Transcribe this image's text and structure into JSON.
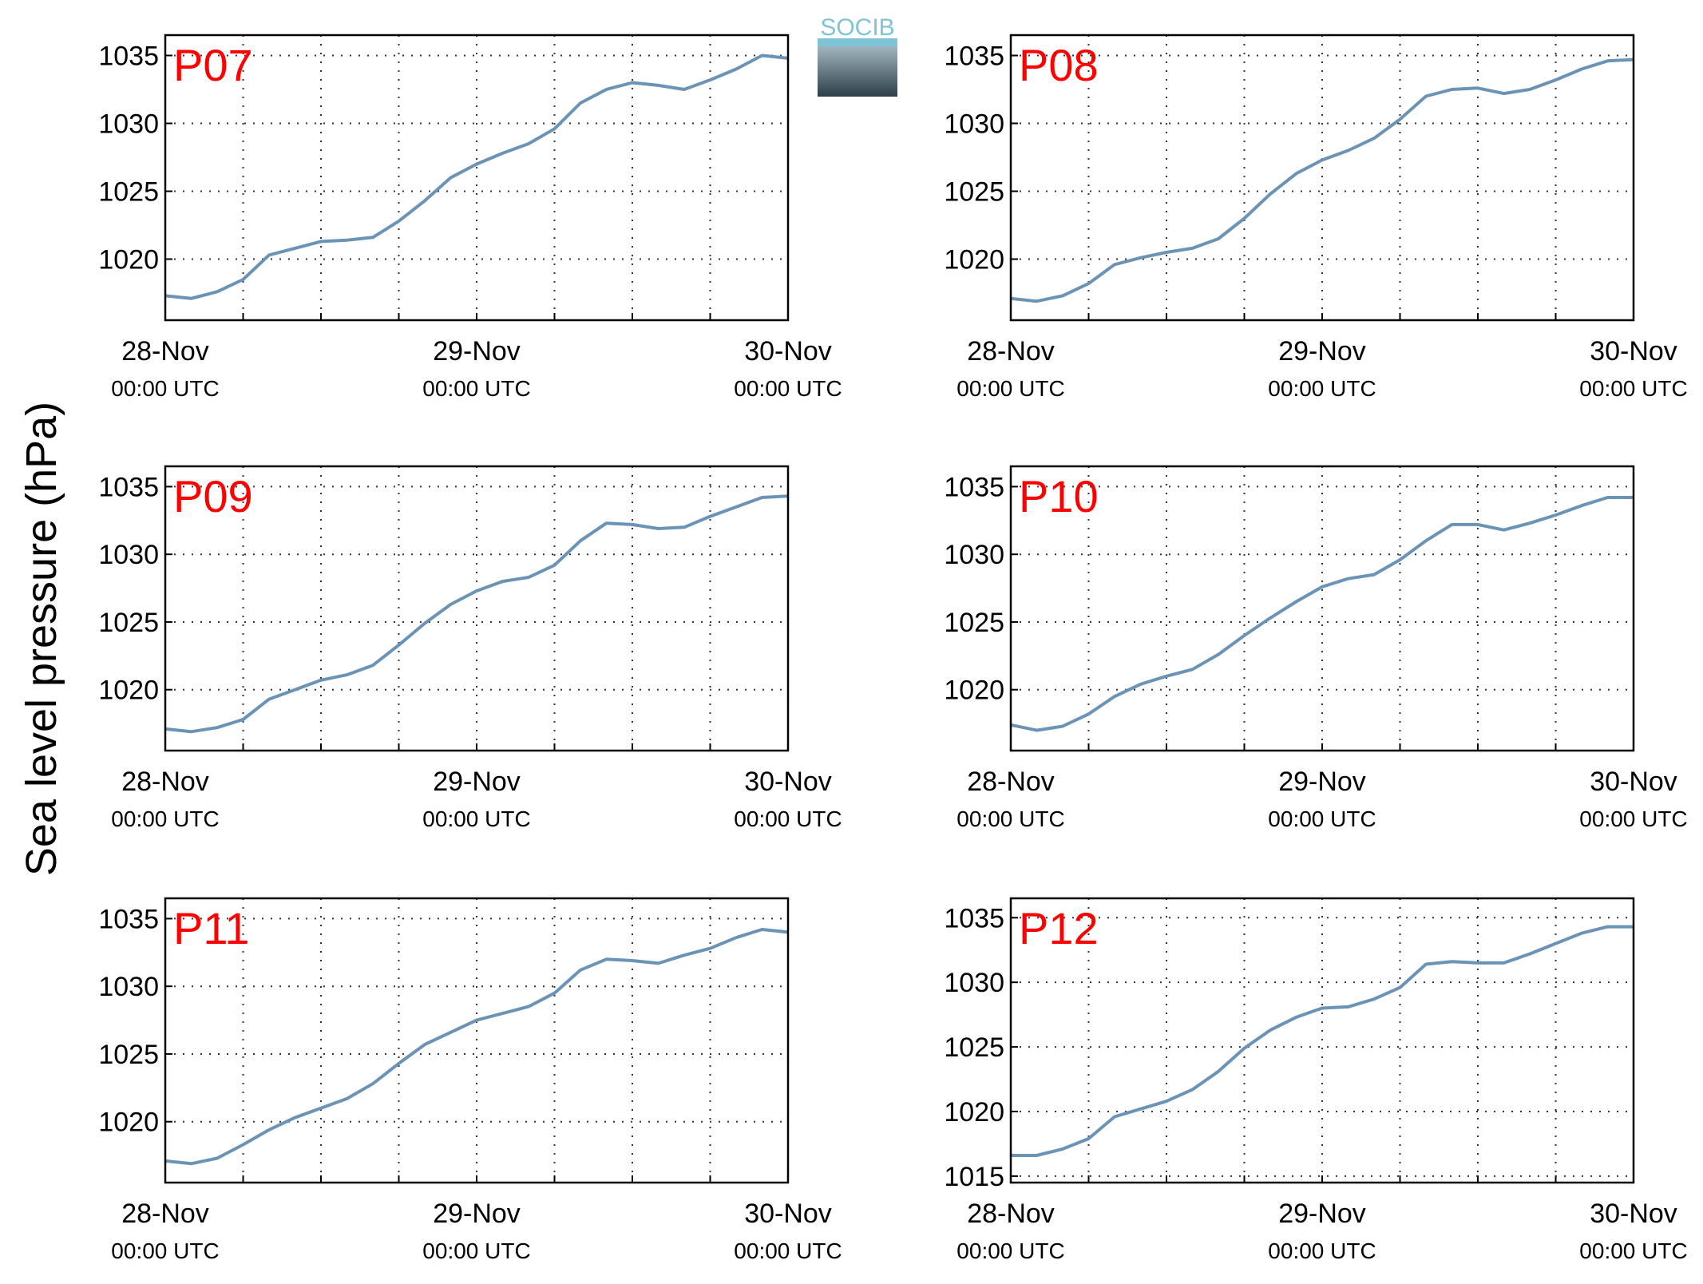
{
  "figure": {
    "ylabel": "Sea level pressure (hPa)",
    "logo_text": "SOCIB",
    "line_color": "#6a93b5",
    "title_color": "#ff0000"
  },
  "chart_data": [
    {
      "type": "line",
      "title": "P07",
      "ylabel": "",
      "xlim": [
        "2012-11-28T00:00",
        "2012-11-30T00:00"
      ],
      "ylim": [
        1015.5,
        1036.5
      ],
      "yticks": [
        1020,
        1025,
        1030,
        1035
      ],
      "xticks": [
        {
          "date": "28-Nov",
          "time": "00:00 UTC"
        },
        {
          "date": "29-Nov",
          "time": "00:00 UTC"
        },
        {
          "date": "30-Nov",
          "time": "00:00 UTC"
        }
      ],
      "grid": true,
      "series": [
        {
          "x_hours": [
            0,
            2,
            4,
            6,
            8,
            10,
            12,
            14,
            16,
            18,
            20,
            22,
            24,
            26,
            28,
            30,
            32,
            34,
            36,
            38,
            40,
            42,
            44,
            46,
            48
          ],
          "values": [
            1017.3,
            1017.1,
            1017.6,
            1018.5,
            1020.3,
            1020.8,
            1021.3,
            1021.4,
            1021.6,
            1022.8,
            1024.3,
            1026.0,
            1027.0,
            1027.8,
            1028.5,
            1029.6,
            1031.5,
            1032.5,
            1033.0,
            1032.8,
            1032.5,
            1033.2,
            1034.0,
            1035.0,
            1034.8
          ]
        }
      ]
    },
    {
      "type": "line",
      "title": "P08",
      "ylabel": "",
      "xlim": [
        "2012-11-28T00:00",
        "2012-11-30T00:00"
      ],
      "ylim": [
        1015.5,
        1036.5
      ],
      "yticks": [
        1020,
        1025,
        1030,
        1035
      ],
      "xticks": [
        {
          "date": "28-Nov",
          "time": "00:00 UTC"
        },
        {
          "date": "29-Nov",
          "time": "00:00 UTC"
        },
        {
          "date": "30-Nov",
          "time": "00:00 UTC"
        }
      ],
      "grid": true,
      "series": [
        {
          "x_hours": [
            0,
            2,
            4,
            6,
            8,
            10,
            12,
            14,
            16,
            18,
            20,
            22,
            24,
            26,
            28,
            30,
            32,
            34,
            36,
            38,
            40,
            42,
            44,
            46,
            48
          ],
          "values": [
            1017.1,
            1016.9,
            1017.3,
            1018.2,
            1019.6,
            1020.1,
            1020.5,
            1020.8,
            1021.5,
            1023.0,
            1024.8,
            1026.3,
            1027.3,
            1028.0,
            1028.9,
            1030.3,
            1032.0,
            1032.5,
            1032.6,
            1032.2,
            1032.5,
            1033.2,
            1034.0,
            1034.6,
            1034.7
          ]
        }
      ]
    },
    {
      "type": "line",
      "title": "P09",
      "ylabel": "",
      "xlim": [
        "2012-11-28T00:00",
        "2012-11-30T00:00"
      ],
      "ylim": [
        1015.5,
        1036.5
      ],
      "yticks": [
        1020,
        1025,
        1030,
        1035
      ],
      "xticks": [
        {
          "date": "28-Nov",
          "time": "00:00 UTC"
        },
        {
          "date": "29-Nov",
          "time": "00:00 UTC"
        },
        {
          "date": "30-Nov",
          "time": "00:00 UTC"
        }
      ],
      "grid": true,
      "series": [
        {
          "x_hours": [
            0,
            2,
            4,
            6,
            8,
            10,
            12,
            14,
            16,
            18,
            20,
            22,
            24,
            26,
            28,
            30,
            32,
            34,
            36,
            38,
            40,
            42,
            44,
            46,
            48
          ],
          "values": [
            1017.1,
            1016.9,
            1017.2,
            1017.8,
            1019.3,
            1020.0,
            1020.7,
            1021.1,
            1021.8,
            1023.3,
            1024.9,
            1026.3,
            1027.3,
            1028.0,
            1028.3,
            1029.2,
            1031.0,
            1032.3,
            1032.2,
            1031.9,
            1032.0,
            1032.8,
            1033.5,
            1034.2,
            1034.3
          ]
        }
      ]
    },
    {
      "type": "line",
      "title": "P10",
      "ylabel": "",
      "xlim": [
        "2012-11-28T00:00",
        "2012-11-30T00:00"
      ],
      "ylim": [
        1015.5,
        1036.5
      ],
      "yticks": [
        1020,
        1025,
        1030,
        1035
      ],
      "xticks": [
        {
          "date": "28-Nov",
          "time": "00:00 UTC"
        },
        {
          "date": "29-Nov",
          "time": "00:00 UTC"
        },
        {
          "date": "30-Nov",
          "time": "00:00 UTC"
        }
      ],
      "grid": true,
      "series": [
        {
          "x_hours": [
            0,
            2,
            4,
            6,
            8,
            10,
            12,
            14,
            16,
            18,
            20,
            22,
            24,
            26,
            28,
            30,
            32,
            34,
            36,
            38,
            40,
            42,
            44,
            46,
            48
          ],
          "values": [
            1017.4,
            1017.0,
            1017.3,
            1018.2,
            1019.5,
            1020.4,
            1021.0,
            1021.5,
            1022.6,
            1024.0,
            1025.3,
            1026.5,
            1027.6,
            1028.2,
            1028.5,
            1029.6,
            1031.0,
            1032.2,
            1032.2,
            1031.8,
            1032.3,
            1032.9,
            1033.6,
            1034.2,
            1034.2
          ]
        }
      ]
    },
    {
      "type": "line",
      "title": "P11",
      "ylabel": "",
      "xlim": [
        "2012-11-28T00:00",
        "2012-11-30T00:00"
      ],
      "ylim": [
        1015.5,
        1036.5
      ],
      "yticks": [
        1020,
        1025,
        1030,
        1035
      ],
      "xticks": [
        {
          "date": "28-Nov",
          "time": "00:00 UTC"
        },
        {
          "date": "29-Nov",
          "time": "00:00 UTC"
        },
        {
          "date": "30-Nov",
          "time": "00:00 UTC"
        }
      ],
      "grid": true,
      "series": [
        {
          "x_hours": [
            0,
            2,
            4,
            6,
            8,
            10,
            12,
            14,
            16,
            18,
            20,
            22,
            24,
            26,
            28,
            30,
            32,
            34,
            36,
            38,
            40,
            42,
            44,
            46,
            48
          ],
          "values": [
            1017.1,
            1016.9,
            1017.3,
            1018.3,
            1019.4,
            1020.3,
            1021.0,
            1021.7,
            1022.8,
            1024.3,
            1025.7,
            1026.6,
            1027.5,
            1028.0,
            1028.5,
            1029.5,
            1031.2,
            1032.0,
            1031.9,
            1031.7,
            1032.3,
            1032.8,
            1033.6,
            1034.2,
            1034.0
          ]
        }
      ]
    },
    {
      "type": "line",
      "title": "P12",
      "ylabel": "",
      "xlim": [
        "2012-11-28T00:00",
        "2012-11-30T00:00"
      ],
      "ylim": [
        1014.5,
        1036.5
      ],
      "yticks": [
        1015,
        1020,
        1025,
        1030,
        1035
      ],
      "xticks": [
        {
          "date": "28-Nov",
          "time": "00:00 UTC"
        },
        {
          "date": "29-Nov",
          "time": "00:00 UTC"
        },
        {
          "date": "30-Nov",
          "time": "00:00 UTC"
        }
      ],
      "grid": true,
      "series": [
        {
          "x_hours": [
            0,
            2,
            4,
            6,
            8,
            10,
            12,
            14,
            16,
            18,
            20,
            22,
            24,
            26,
            28,
            30,
            32,
            34,
            36,
            38,
            40,
            42,
            44,
            46,
            48
          ],
          "values": [
            1016.6,
            1016.6,
            1017.1,
            1017.9,
            1019.6,
            1020.2,
            1020.8,
            1021.7,
            1023.1,
            1024.9,
            1026.3,
            1027.3,
            1028.0,
            1028.1,
            1028.7,
            1029.6,
            1031.4,
            1031.6,
            1031.5,
            1031.5,
            1032.2,
            1033.0,
            1033.8,
            1034.3,
            1034.3
          ]
        }
      ]
    }
  ]
}
